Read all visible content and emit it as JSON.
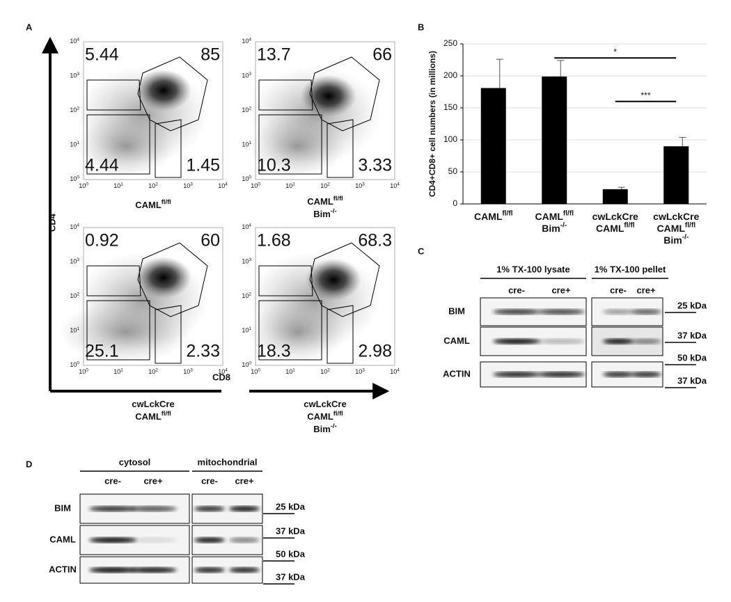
{
  "panel_labels": [
    "A",
    "B",
    "C",
    "D"
  ],
  "flow": {
    "y_axis_label": "CD4",
    "x_axis_label": "CD8",
    "axis_ticks": [
      {
        "text": "10",
        "sup": "0"
      },
      {
        "text": "10",
        "sup": "1"
      },
      {
        "text": "10",
        "sup": "2"
      },
      {
        "text": "10",
        "sup": "3"
      },
      {
        "text": "10",
        "sup": "4"
      }
    ],
    "plots": [
      {
        "genotype": [
          {
            "text": "CAML",
            "sup": "fl/fl"
          }
        ],
        "quadrants": {
          "upper_left": "5.44",
          "upper_right": "85",
          "lower_left": "4.44",
          "lower_right": "1.45"
        }
      },
      {
        "genotype": [
          {
            "text": "CAML",
            "sup": "fl/fl"
          },
          {
            "text": "Bim",
            "sup": "-/-"
          }
        ],
        "quadrants": {
          "upper_left": "13.7",
          "upper_right": "66",
          "lower_left": "10.3",
          "lower_right": "3.33"
        }
      },
      {
        "genotype": [
          {
            "text": "cwLckCre"
          },
          {
            "text": "CAML",
            "sup": "fl/fl"
          }
        ],
        "quadrants": {
          "upper_left": "0.92",
          "upper_right": "60",
          "lower_left": "25.1",
          "lower_right": "2.33"
        }
      },
      {
        "genotype": [
          {
            "text": "cwLckCre"
          },
          {
            "text": "CAML",
            "sup": "fl/fl"
          },
          {
            "text": "Bim",
            "sup": "-/-"
          }
        ],
        "quadrants": {
          "upper_left": "1.68",
          "upper_right": "68.3",
          "lower_left": "18.3",
          "lower_right": "2.98"
        }
      }
    ]
  },
  "chart_data": {
    "type": "bar",
    "y_axis_label": "CD4+CD8+ cell numbers (in millions)",
    "categories": [
      [
        {
          "text": "CAML",
          "sup": "fl/fl"
        }
      ],
      [
        {
          "text": "CAML",
          "sup": "fl/fl"
        },
        {
          "text": "Bim",
          "sup": "-/-"
        }
      ],
      [
        {
          "text": "cwLckCre"
        },
        {
          "text": "CAML",
          "sup": "fl/fl"
        }
      ],
      [
        {
          "text": "cwLckCre"
        },
        {
          "text": "CAML",
          "sup": "fl/fl"
        },
        {
          "text": "Bim",
          "sup": "-/-"
        }
      ]
    ],
    "values": [
      181,
      199,
      23,
      90
    ],
    "errors": [
      45,
      25,
      3,
      14
    ],
    "color": "#000000",
    "ylim": [
      0,
      250
    ],
    "yticks": [
      0,
      50,
      100,
      150,
      200,
      250
    ],
    "grid": true,
    "significance": [
      {
        "label": "*",
        "y": 228,
        "span": [
          1,
          3
        ]
      },
      {
        "label": "***",
        "y": 160,
        "span": [
          2,
          3
        ]
      }
    ]
  },
  "blot_c": {
    "groups": [
      "1% TX-100 lysate",
      "1% TX-100 pellet"
    ],
    "lanes": [
      "cre-",
      "cre+",
      "cre-",
      "cre+"
    ],
    "rows": [
      "BIM",
      "CAML",
      "ACTIN"
    ],
    "markers": [
      "25 kDa",
      "37 kDa",
      "50 kDa",
      "37 kDa"
    ]
  },
  "blot_d": {
    "groups": [
      "cytosol",
      "mitochondrial"
    ],
    "lanes": [
      "cre-",
      "cre+",
      "cre-",
      "cre+"
    ],
    "rows": [
      "BIM",
      "CAML",
      "ACTIN"
    ],
    "markers": [
      "25 kDa",
      "37 kDa",
      "50 kDa",
      "37 kDa"
    ]
  }
}
